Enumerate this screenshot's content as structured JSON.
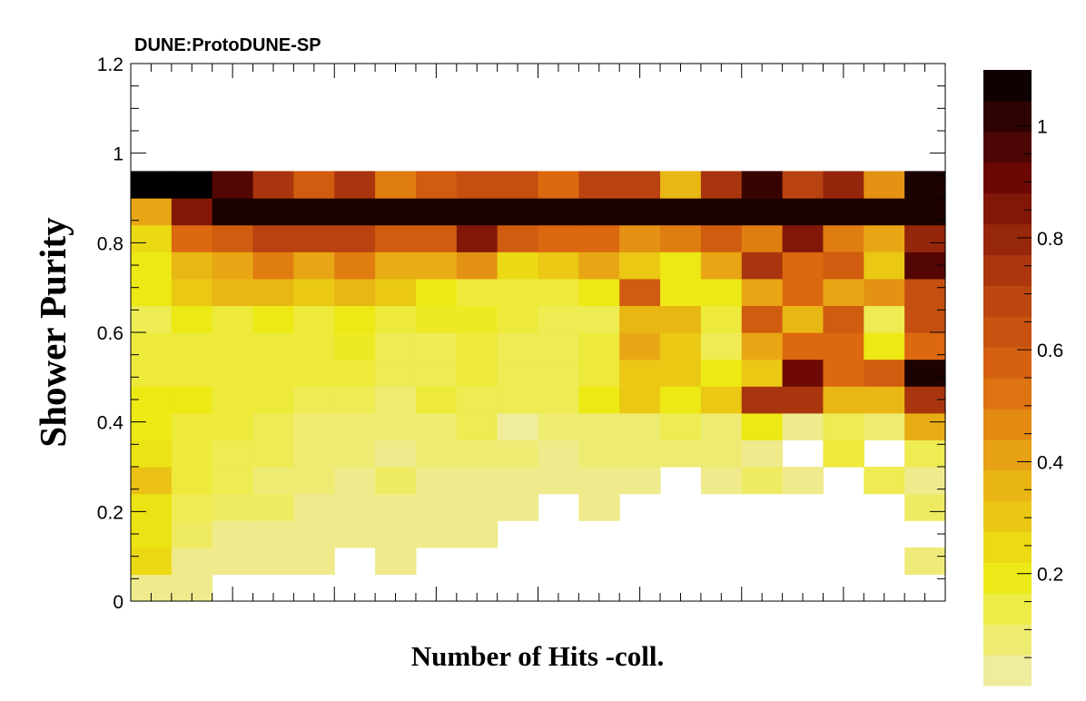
{
  "chart_data": {
    "type": "heatmap",
    "title": "DUNE:ProtoDUNE-SP",
    "xlabel": "Number of Hits -coll.",
    "ylabel": "Shower Purity",
    "ylim": [
      0,
      1.2
    ],
    "y_ticks": [
      "0",
      "0.2",
      "0.4",
      "0.6",
      "0.8",
      "1",
      "1.2"
    ],
    "colorbar_ticks": [
      "0.2",
      "0.4",
      "0.6",
      "0.8",
      "1"
    ],
    "colorbar_range": [
      0,
      1.1
    ],
    "bin_count_x": 20,
    "bin_width_y": 0.06,
    "grid": false,
    "colorbar_position": "right",
    "z": [
      [
        0.05,
        0.05,
        0,
        0,
        0,
        0,
        0,
        0,
        0,
        0,
        0,
        0,
        0,
        0,
        0,
        0,
        0,
        0,
        0,
        0
      ],
      [
        0.25,
        0.05,
        0.05,
        0.05,
        0.05,
        0,
        0.05,
        0,
        0,
        0,
        0,
        0,
        0,
        0,
        0,
        0,
        0,
        0,
        0,
        0.07
      ],
      [
        0.22,
        0.1,
        0.05,
        0.05,
        0.05,
        0.05,
        0.05,
        0.05,
        0.05,
        0,
        0,
        0,
        0,
        0,
        0,
        0,
        0,
        0,
        0,
        0
      ],
      [
        0.22,
        0.12,
        0.1,
        0.1,
        0.05,
        0.05,
        0.05,
        0.05,
        0.05,
        0.05,
        0,
        0.05,
        0,
        0,
        0,
        0,
        0,
        0,
        0,
        0.1
      ],
      [
        0.32,
        0.15,
        0.12,
        0.08,
        0.08,
        0.05,
        0.1,
        0.05,
        0.05,
        0.05,
        0.05,
        0.05,
        0.05,
        0,
        0.05,
        0.1,
        0.05,
        0,
        0.12,
        0.05
      ],
      [
        0.22,
        0.15,
        0.12,
        0.12,
        0.08,
        0.08,
        0.05,
        0.08,
        0.08,
        0.08,
        0.05,
        0.08,
        0.08,
        0.08,
        0.08,
        0.05,
        0,
        0.15,
        0,
        0.12
      ],
      [
        0.2,
        0.15,
        0.15,
        0.12,
        0.08,
        0.08,
        0.08,
        0.08,
        0.12,
        0.03,
        0.08,
        0.08,
        0.08,
        0.12,
        0.08,
        0.2,
        0.05,
        0.12,
        0.08,
        0.38
      ],
      [
        0.2,
        0.2,
        0.15,
        0.15,
        0.12,
        0.12,
        0.08,
        0.15,
        0.12,
        0.12,
        0.12,
        0.2,
        0.3,
        0.2,
        0.3,
        0.75,
        0.75,
        0.35,
        0.35,
        0.75
      ],
      [
        0.15,
        0.15,
        0.15,
        0.15,
        0.15,
        0.15,
        0.12,
        0.12,
        0.15,
        0.12,
        0.12,
        0.15,
        0.3,
        0.3,
        0.2,
        0.3,
        0.9,
        0.55,
        0.6,
        1.05
      ],
      [
        0.15,
        0.15,
        0.15,
        0.15,
        0.15,
        0.18,
        0.12,
        0.12,
        0.15,
        0.12,
        0.12,
        0.15,
        0.4,
        0.3,
        0.12,
        0.4,
        0.55,
        0.55,
        0.2,
        0.55
      ],
      [
        0.12,
        0.2,
        0.15,
        0.2,
        0.15,
        0.2,
        0.15,
        0.18,
        0.18,
        0.15,
        0.12,
        0.12,
        0.35,
        0.35,
        0.15,
        0.6,
        0.35,
        0.6,
        0.12,
        0.65
      ],
      [
        0.2,
        0.3,
        0.35,
        0.35,
        0.3,
        0.35,
        0.3,
        0.2,
        0.15,
        0.15,
        0.15,
        0.2,
        0.6,
        0.2,
        0.2,
        0.4,
        0.55,
        0.4,
        0.45,
        0.65
      ],
      [
        0.2,
        0.35,
        0.4,
        0.5,
        0.4,
        0.5,
        0.38,
        0.38,
        0.45,
        0.25,
        0.3,
        0.4,
        0.3,
        0.2,
        0.4,
        0.75,
        0.55,
        0.6,
        0.3,
        0.95
      ],
      [
        0.25,
        0.55,
        0.6,
        0.7,
        0.7,
        0.7,
        0.6,
        0.6,
        0.85,
        0.6,
        0.55,
        0.55,
        0.45,
        0.5,
        0.6,
        0.5,
        0.85,
        0.5,
        0.4,
        0.8
      ],
      [
        0.4,
        0.85,
        1.05,
        1.05,
        1.05,
        1.05,
        1.05,
        1.05,
        1.05,
        1.05,
        1.05,
        1.05,
        1.05,
        1.05,
        1.05,
        1.05,
        1.05,
        1.05,
        1.05,
        1.05
      ],
      [
        1.1,
        1.1,
        0.95,
        0.75,
        0.6,
        0.75,
        0.5,
        0.6,
        0.65,
        0.65,
        0.55,
        0.7,
        0.7,
        0.35,
        0.75,
        1.0,
        0.7,
        0.8,
        0.45,
        1.05
      ]
    ]
  }
}
